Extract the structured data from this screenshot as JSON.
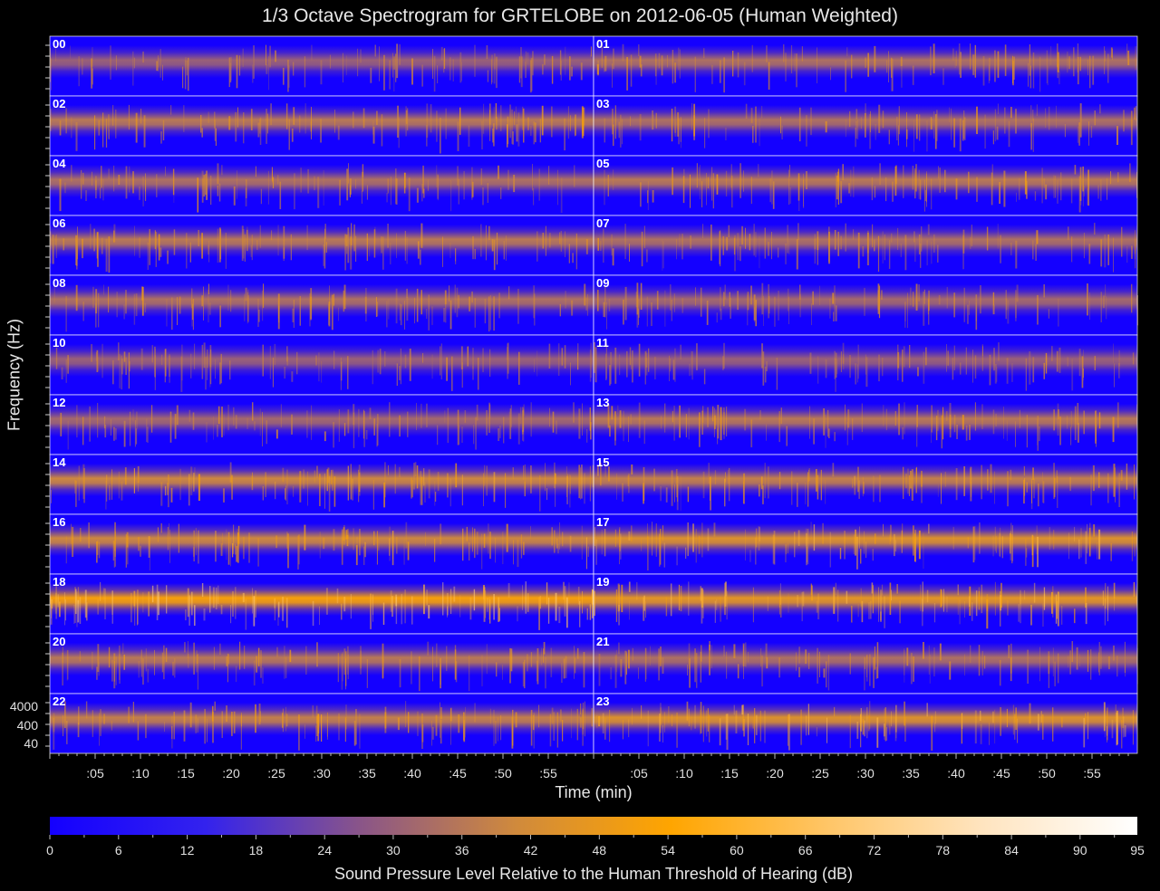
{
  "chart_data": {
    "type": "heatmap",
    "title": "1/3 Octave Spectrogram for GRTELOBE on 2012-06-05 (Human Weighted)",
    "xlabel": "Time (min)",
    "ylabel": "Frequency (Hz)",
    "y_scale": "log",
    "y_tick_labels": [
      "4000",
      "400",
      "40"
    ],
    "x_tick_labels": [
      ":05",
      ":10",
      ":15",
      ":20",
      ":25",
      ":30",
      ":35",
      ":40",
      ":45",
      ":50",
      ":55"
    ],
    "hour_panels": [
      "00",
      "01",
      "02",
      "03",
      "04",
      "05",
      "06",
      "07",
      "08",
      "09",
      "10",
      "11",
      "12",
      "13",
      "14",
      "15",
      "16",
      "17",
      "18",
      "19",
      "20",
      "21",
      "22",
      "23"
    ],
    "hour_band_intensity_db": [
      30,
      34,
      36,
      34,
      34,
      36,
      36,
      34,
      34,
      32,
      30,
      30,
      32,
      36,
      40,
      38,
      40,
      44,
      52,
      46,
      36,
      34,
      38,
      44
    ],
    "colorbar": {
      "label": "Sound Pressure Level Relative to the Human Threshold of Hearing (dB)",
      "min": 0,
      "max": 95,
      "tick_labels": [
        "0",
        "6",
        "12",
        "18",
        "24",
        "30",
        "36",
        "42",
        "48",
        "54",
        "60",
        "66",
        "72",
        "78",
        "84",
        "90",
        "95"
      ],
      "colors": [
        "#1400ff",
        "#3322ee",
        "#8a5588",
        "#d08a3c",
        "#ffa500",
        "#ffc566",
        "#ffe4bf",
        "#ffffff"
      ]
    }
  }
}
